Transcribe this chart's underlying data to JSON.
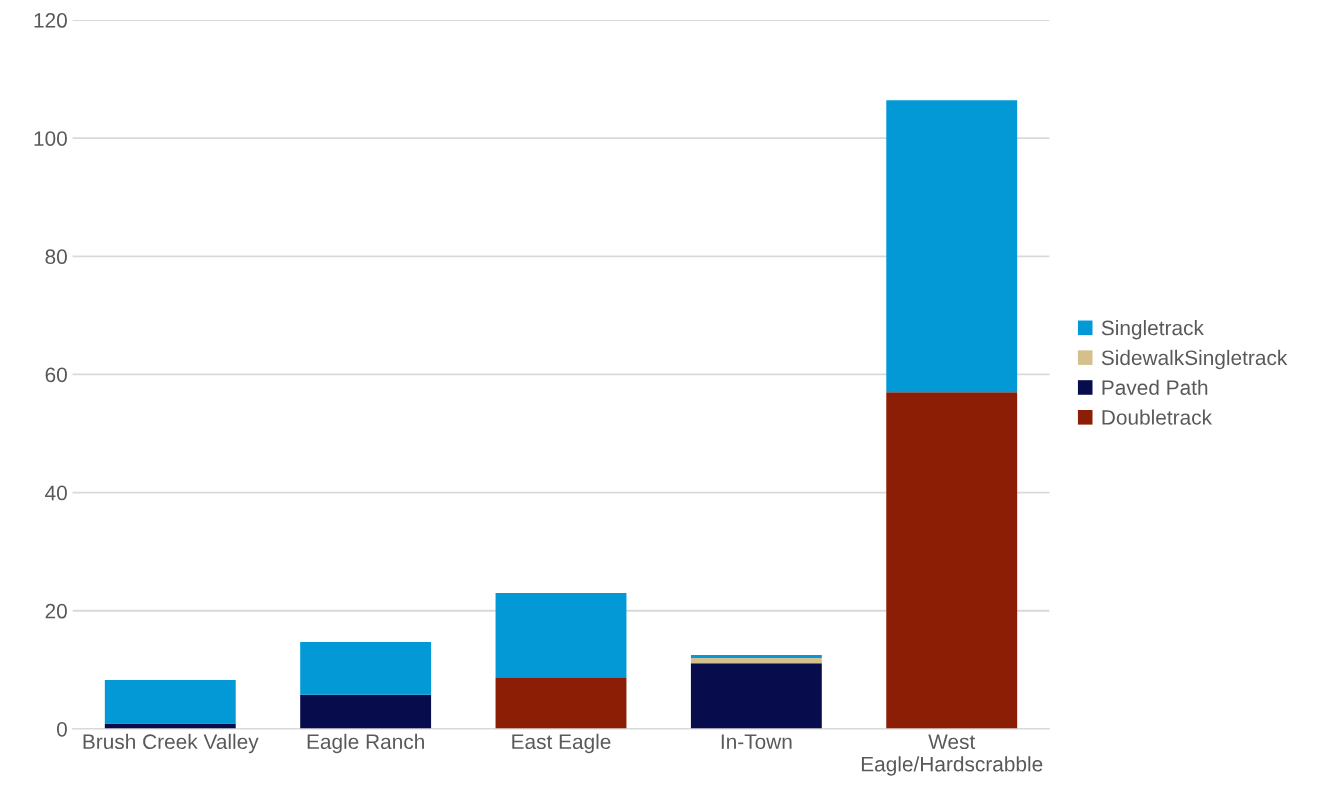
{
  "chart_data": {
    "type": "bar",
    "stacked": true,
    "categories": [
      "Brush Creek Valley",
      "Eagle Ranch",
      "East Eagle",
      "In-Town",
      "West Eagle/Hardscrabble"
    ],
    "series": [
      {
        "name": "Doubletrack",
        "color": "#8b1e04",
        "values": [
          0,
          0,
          8.6,
          0,
          57.0
        ]
      },
      {
        "name": "Paved Path",
        "color": "#070c4d",
        "values": [
          0.9,
          5.8,
          0,
          11.1,
          0
        ]
      },
      {
        "name": "SidewalkSingletrack",
        "color": "#d4c08c",
        "values": [
          0,
          0,
          0,
          0.9,
          0
        ]
      },
      {
        "name": "Singletrack",
        "color": "#0399d7",
        "values": [
          7.4,
          8.9,
          14.4,
          0.5,
          49.4
        ]
      }
    ],
    "ylim": [
      0,
      120
    ],
    "yticks": [
      0,
      20,
      40,
      60,
      80,
      100,
      120
    ],
    "grid": "y",
    "legend": "right"
  }
}
